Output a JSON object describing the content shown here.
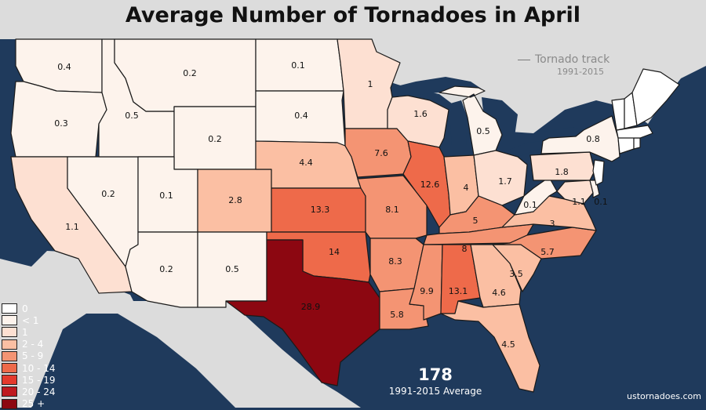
{
  "title": "Average Number of Tornadoes in April",
  "track_legend": {
    "label": "Tornado track",
    "years": "1991-2015"
  },
  "total": {
    "value": "178",
    "caption": "1991-2015 Average"
  },
  "source": "ustornadoes.com",
  "colors": {
    "ocean": "#1f3a5c",
    "land_other": "#dcdcdc",
    "lakes": "#1f3a5c",
    "bin_0": "#ffffff",
    "bin_lt1": "#fdf3ec",
    "bin_1": "#fde0d2",
    "bin_2_4": "#fbbfa3",
    "bin_5_9": "#f49473",
    "bin_10_14": "#ee6a4a",
    "bin_15_19": "#e43a2c",
    "bin_20_24": "#bf1a1f",
    "bin_25": "#8c0711"
  },
  "legend": [
    {
      "label": "0",
      "color": "#ffffff"
    },
    {
      "label": "< 1",
      "color": "#fdf3ec"
    },
    {
      "label": "1",
      "color": "#fde0d2"
    },
    {
      "label": "2 - 4",
      "color": "#fbbfa3"
    },
    {
      "label": "5 - 9",
      "color": "#f49473"
    },
    {
      "label": "10 - 14",
      "color": "#ee6a4a"
    },
    {
      "label": "15 - 19",
      "color": "#e43a2c"
    },
    {
      "label": "20 - 24",
      "color": "#bf1a1f"
    },
    {
      "label": "25 +",
      "color": "#8c0711"
    }
  ],
  "states": [
    {
      "code": "WA",
      "value": "0.4"
    },
    {
      "code": "OR",
      "value": "0.3"
    },
    {
      "code": "CA",
      "value": "1.1"
    },
    {
      "code": "NV",
      "value": "0.2"
    },
    {
      "code": "ID",
      "value": "0.5"
    },
    {
      "code": "MT",
      "value": "0.2"
    },
    {
      "code": "WY",
      "value": "0.2"
    },
    {
      "code": "UT",
      "value": "0.1"
    },
    {
      "code": "AZ",
      "value": "0.2"
    },
    {
      "code": "CO",
      "value": "2.8"
    },
    {
      "code": "NM",
      "value": "0.5"
    },
    {
      "code": "ND",
      "value": "0.1"
    },
    {
      "code": "SD",
      "value": "0.4"
    },
    {
      "code": "NE",
      "value": "4.4"
    },
    {
      "code": "KS",
      "value": "13.3"
    },
    {
      "code": "OK",
      "value": "14"
    },
    {
      "code": "TX",
      "value": "28.9"
    },
    {
      "code": "MN",
      "value": "1"
    },
    {
      "code": "IA",
      "value": "7.6"
    },
    {
      "code": "MO",
      "value": "8.1"
    },
    {
      "code": "AR",
      "value": "8.3"
    },
    {
      "code": "LA",
      "value": "5.8"
    },
    {
      "code": "WI",
      "value": "1.6"
    },
    {
      "code": "IL",
      "value": "12.6"
    },
    {
      "code": "MI",
      "value": "0.5"
    },
    {
      "code": "IN",
      "value": "4"
    },
    {
      "code": "OH",
      "value": "1.7"
    },
    {
      "code": "KY",
      "value": "5"
    },
    {
      "code": "TN",
      "value": "8"
    },
    {
      "code": "MS",
      "value": "9.9"
    },
    {
      "code": "AL",
      "value": "13.1"
    },
    {
      "code": "GA",
      "value": "4.6"
    },
    {
      "code": "FL",
      "value": "4.5"
    },
    {
      "code": "SC",
      "value": "3.5"
    },
    {
      "code": "NC",
      "value": "5.7"
    },
    {
      "code": "VA",
      "value": "3"
    },
    {
      "code": "WV",
      "value": "0.1"
    },
    {
      "code": "PA",
      "value": "1.8"
    },
    {
      "code": "NY",
      "value": "0.8"
    },
    {
      "code": "MD",
      "value": "1.1"
    },
    {
      "code": "DE",
      "value": "0.1"
    },
    {
      "code": "NJ",
      "value": ""
    },
    {
      "code": "CT",
      "value": ""
    },
    {
      "code": "RI",
      "value": ""
    },
    {
      "code": "MA",
      "value": ""
    },
    {
      "code": "VT",
      "value": ""
    },
    {
      "code": "NH",
      "value": ""
    },
    {
      "code": "ME",
      "value": ""
    }
  ]
}
